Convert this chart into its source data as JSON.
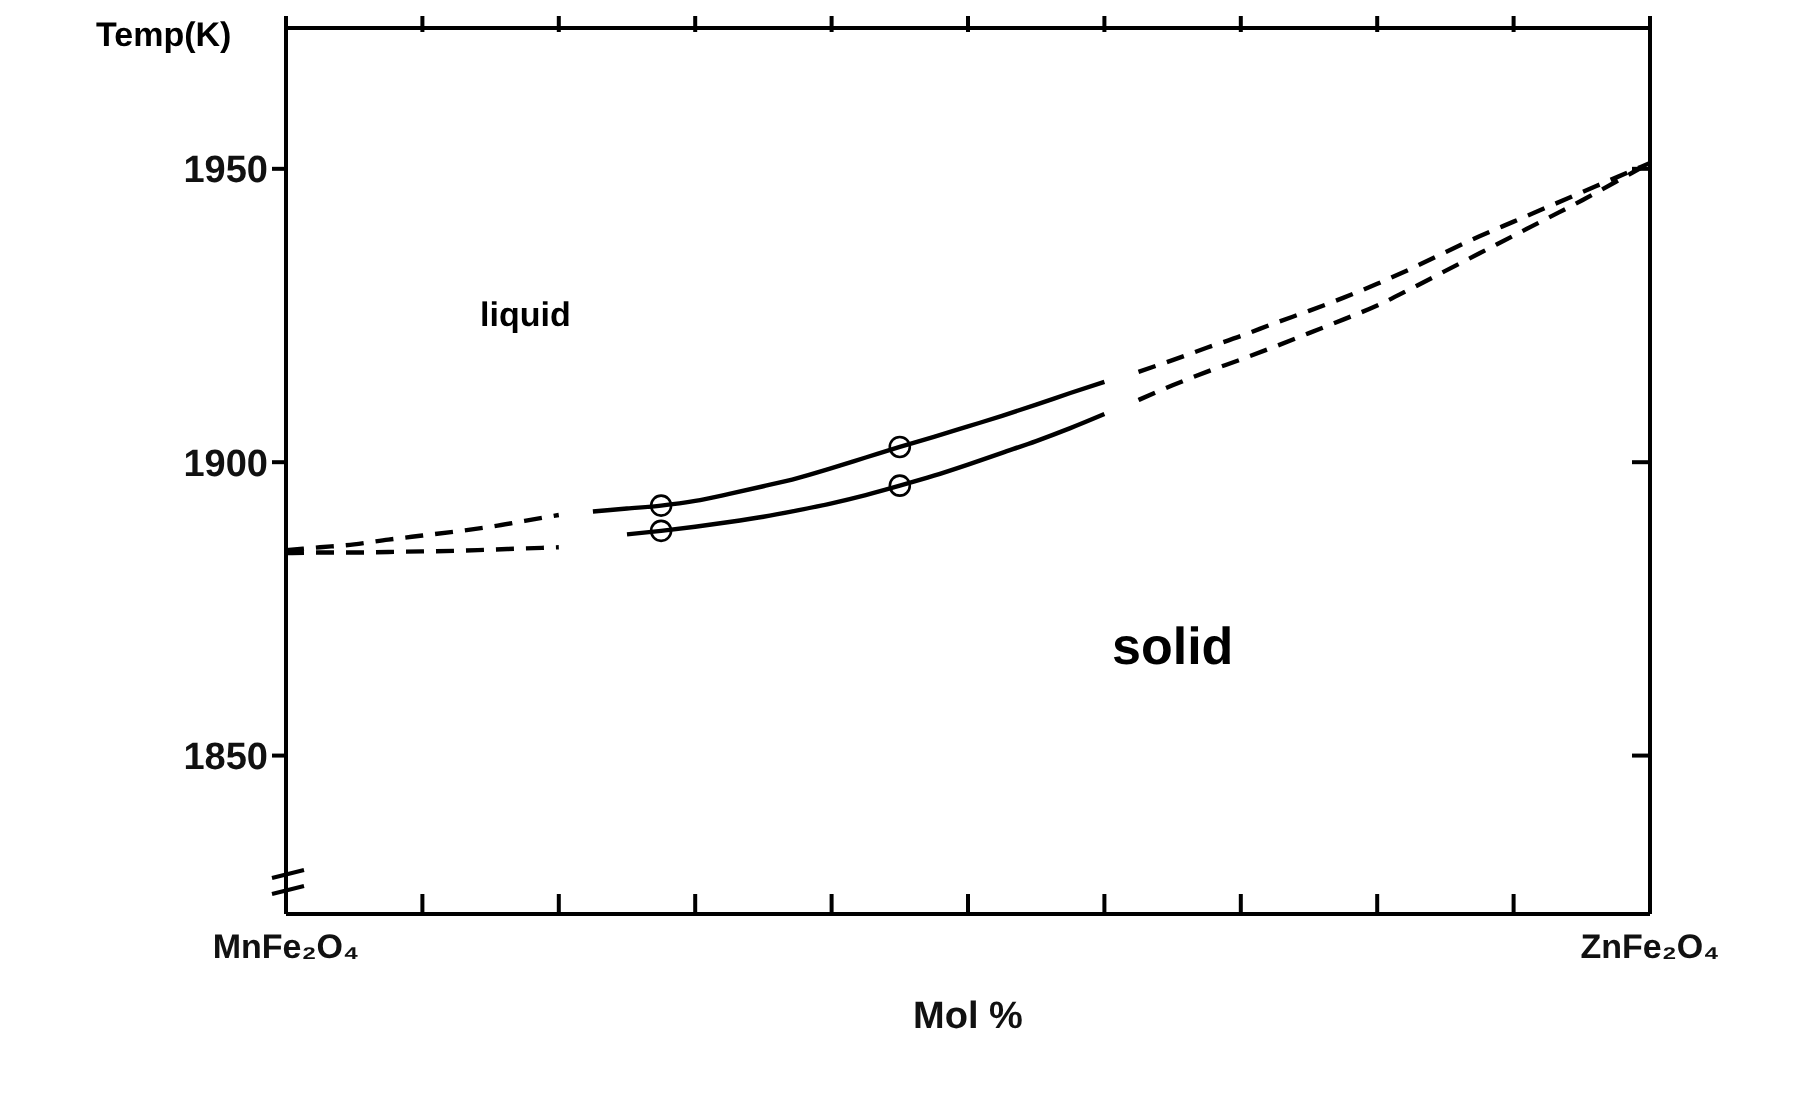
{
  "chart_data": {
    "type": "line",
    "ylabel": "Temp(K)",
    "xlabel": "Mol %",
    "categories": [
      "MnFe₂O₄",
      null,
      null,
      null,
      null,
      null,
      null,
      null,
      null,
      null,
      null,
      null,
      null,
      null,
      null,
      null,
      null,
      null,
      null,
      null,
      null,
      null,
      null,
      null,
      null,
      null,
      null,
      null,
      null,
      null,
      null,
      null,
      null,
      null,
      null,
      null,
      null,
      null,
      null,
      null,
      "ZnFe₂O₄"
    ],
    "ylim": [
      1823,
      1974
    ],
    "yticks": [
      1850,
      1900,
      1950
    ],
    "annotations": [
      "liquid",
      "solid"
    ],
    "series": [
      {
        "color": "#000000",
        "line_style": "dashed",
        "values": [
          1885,
          1885.5,
          1886,
          1886.8,
          1887.5,
          1888.2,
          1889,
          1890,
          1891,
          null,
          null,
          null,
          null,
          null,
          null,
          null,
          null,
          null,
          null,
          null,
          null,
          null,
          null,
          null,
          null,
          null,
          null,
          null,
          null,
          null,
          null,
          null,
          null,
          null,
          null,
          null,
          null,
          null,
          null,
          null,
          null
        ]
      },
      {
        "color": "#000000",
        "line_style": "solid",
        "values": [
          null,
          null,
          null,
          null,
          null,
          null,
          null,
          null,
          null,
          1891.6,
          1892.1,
          1892.6,
          1893.4,
          1894.6,
          1895.9,
          1897.3,
          1899,
          1900.8,
          1902.6,
          1904.3,
          1906.1,
          1907.9,
          1909.8,
          1911.8,
          1913.7,
          null,
          null,
          null,
          null,
          null,
          null,
          null,
          null,
          null,
          null,
          null,
          null,
          null,
          null,
          null,
          null
        ]
      },
      {
        "color": "#000000",
        "line_style": "dashed",
        "values": [
          null,
          null,
          null,
          null,
          null,
          null,
          null,
          null,
          null,
          null,
          null,
          null,
          null,
          null,
          null,
          null,
          null,
          null,
          null,
          null,
          null,
          null,
          null,
          null,
          null,
          1915.4,
          1917.4,
          1919.5,
          1921.5,
          1923.7,
          1925.8,
          1928,
          1930.4,
          1933,
          1935.8,
          1938.5,
          1941,
          1943.5,
          1946,
          1948.5,
          1951
        ]
      },
      {
        "color": "#000000",
        "line_style": "dashed",
        "values": [
          1884.5,
          1884.6,
          1884.6,
          1884.7,
          1884.8,
          1884.9,
          1885.1,
          1885.3,
          1885.5,
          null,
          null,
          null,
          null,
          null,
          null,
          null,
          null,
          null,
          null,
          null,
          null,
          null,
          null,
          null,
          null,
          null,
          null,
          null,
          null,
          null,
          null,
          null,
          null,
          null,
          null,
          null,
          null,
          null,
          null,
          null,
          null
        ]
      },
      {
        "color": "#000000",
        "line_style": "solid",
        "values": [
          null,
          null,
          null,
          null,
          null,
          null,
          null,
          null,
          null,
          null,
          1887.7,
          1888.3,
          1889,
          1889.8,
          1890.7,
          1891.8,
          1893,
          1894.4,
          1896,
          1897.7,
          1899.6,
          1901.6,
          1903.6,
          1905.8,
          1908.2,
          null,
          null,
          null,
          null,
          null,
          null,
          null,
          null,
          null,
          null,
          null,
          null,
          null,
          null,
          null,
          null
        ]
      },
      {
        "color": "#000000",
        "line_style": "dashed",
        "values": [
          null,
          null,
          null,
          null,
          null,
          null,
          null,
          null,
          null,
          null,
          null,
          null,
          null,
          null,
          null,
          null,
          null,
          null,
          null,
          null,
          null,
          null,
          null,
          null,
          null,
          1910.6,
          1913.1,
          1915.4,
          1917.5,
          1919.7,
          1922,
          1924.3,
          1926.7,
          1929.6,
          1932.6,
          1935.6,
          1938.6,
          1941.6,
          1944.6,
          1947.8,
          1951
        ]
      },
      {
        "type": "scatter",
        "color": "#000000",
        "marker": "circle",
        "values": [
          null,
          null,
          null,
          null,
          null,
          null,
          null,
          null,
          null,
          null,
          null,
          1892.6,
          null,
          null,
          null,
          null,
          null,
          null,
          1902.6,
          null,
          null,
          null,
          null,
          null,
          null,
          null,
          null,
          null,
          null,
          null,
          null,
          null,
          null,
          null,
          null,
          null,
          null,
          null,
          null,
          null,
          null
        ]
      },
      {
        "type": "scatter",
        "color": "#000000",
        "marker": "circle",
        "values": [
          null,
          null,
          null,
          null,
          null,
          null,
          null,
          null,
          null,
          null,
          null,
          1888.3,
          null,
          null,
          null,
          null,
          null,
          null,
          1896,
          null,
          null,
          null,
          null,
          null,
          null,
          null,
          null,
          null,
          null,
          null,
          null,
          null,
          null,
          null,
          null,
          null,
          null,
          null,
          null,
          null,
          null
        ]
      }
    ]
  }
}
